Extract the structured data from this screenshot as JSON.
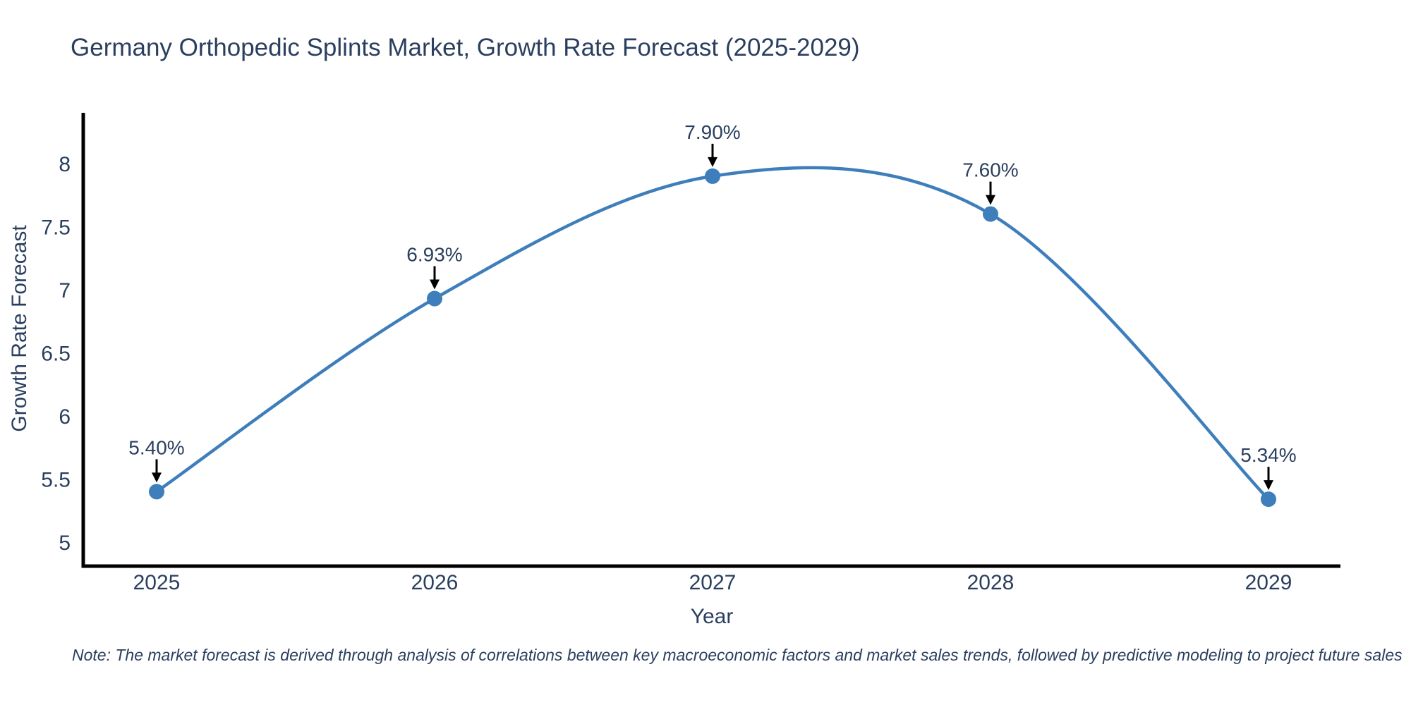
{
  "note": "Note: The market forecast is derived through analysis of correlations between key macroeconomic factors and market sales trends, followed by predictive modeling to project future sales",
  "chart_data": {
    "type": "line",
    "line_shape": "spline",
    "title": "Germany Orthopedic Splints Market, Growth Rate Forecast (2025-2029)",
    "xlabel": "Year",
    "ylabel": "Growth Rate Forecast",
    "categories": [
      "2025",
      "2026",
      "2027",
      "2028",
      "2029"
    ],
    "values": [
      5.4,
      6.93,
      7.9,
      7.6,
      5.34
    ],
    "point_labels": [
      "5.40%",
      "6.93%",
      "7.90%",
      "7.60%",
      "5.34%"
    ],
    "yticks": [
      8,
      7.5,
      7,
      6.5,
      6,
      5.5,
      5
    ],
    "ylim": [
      4.8,
      8.4
    ],
    "grid": false,
    "legend": "none",
    "annotations_have_arrows": true,
    "colors": {
      "line": "#3d7ebb",
      "marker": "#3d7ebb",
      "axis": "#000000",
      "text": "#2a3f5f",
      "arrow": "#000000"
    }
  }
}
